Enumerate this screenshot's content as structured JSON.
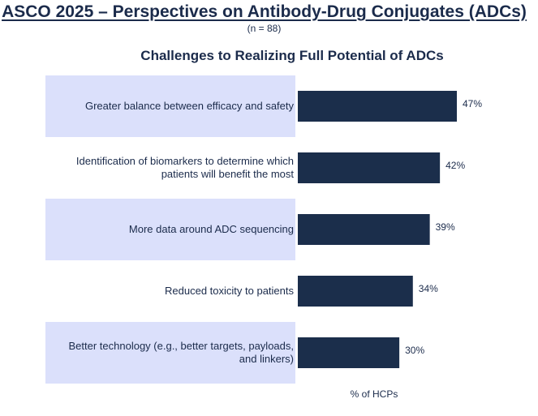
{
  "header": {
    "title": "ASCO 2025 – Perspectives on Antibody-Drug Conjugates (ADCs)",
    "subtitle": "(n = 88)"
  },
  "colors": {
    "bar": "#1b2e4b",
    "band": "#dbe0fb",
    "text": "#1b2b4b"
  },
  "chart_data": {
    "type": "bar",
    "orientation": "horizontal",
    "title": "Challenges to Realizing Full Potential of ADCs",
    "xlabel": "% of HCPs",
    "ylabel": "",
    "categories": [
      [
        "Greater balance between efficacy and safety"
      ],
      [
        "Identification of biomarkers to determine which",
        "patients will benefit the most"
      ],
      [
        "More data around ADC sequencing"
      ],
      [
        "Reduced toxicity to patients"
      ],
      [
        "Better technology (e.g., better targets, payloads,",
        "and linkers)"
      ]
    ],
    "values": [
      47,
      42,
      39,
      34,
      30
    ],
    "value_labels": [
      "47%",
      "42%",
      "39%",
      "34%",
      "30%"
    ],
    "banded_rows": [
      true,
      false,
      true,
      false,
      true
    ],
    "grid": false,
    "legend": "none"
  }
}
